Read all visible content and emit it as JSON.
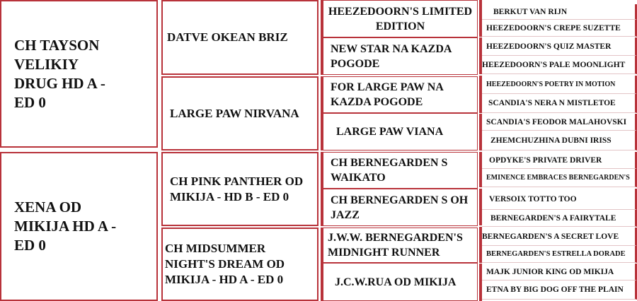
{
  "pedigree": {
    "parents": [
      "CH TAYSON VELIKIY DRUG HD A - ED 0",
      "XENA OD MIKIJA HD A - ED 0"
    ],
    "grandparents": [
      "DATVE OKEAN BRIZ",
      "LARGE PAW NIRVANA",
      "CH PINK PANTHER OD MIKIJA - HD B - ED 0",
      "CH MIDSUMMER NIGHT'S DREAM OD MIKIJA - HD A - ED 0"
    ],
    "great_grandparents": [
      "HEEZEDOORN'S LIMITED EDITION",
      "NEW STAR NA KAZDA POGODE",
      "FOR LARGE PAW NA KAZDA POGODE",
      "LARGE PAW VIANA",
      "CH BERNEGARDEN S WAIKATO",
      "CH BERNEGARDEN S OH JAZZ",
      "J.W.W. BERNEGARDEN'S MIDNIGHT RUNNER",
      "J.C.W.RUA OD MIKIJA"
    ],
    "great_great_grandparents": [
      "BERKUT VAN RIJN",
      "HEEZEDOORN'S CREPE SUZETTE",
      "HEEZEDOORN'S QUIZ MASTER",
      "HEEZEDOORN'S PALE MOONLIGHT",
      "HEEZEDOORN'S POETRY IN MOTION",
      "SCANDIA'S NERA N MISTLETOE",
      "SCANDIA'S FEODOR MALAHOVSKI",
      "ZHEMCHUZHINA DUBNI IRISS",
      "OPDYKE'S PRIVATE DRIVER",
      "EMINENCE EMBRACES BERNEGARDEN'S",
      "VERSOIX TOTTO TOO",
      "BERNEGARDEN'S A FAIRYTALE",
      "BERNEGARDEN'S A SECRET LOVE",
      "BERNEGARDEN'S ESTRELLA DORADE",
      "MAJK JUNIOR KING OD MIKIJA",
      "ETNA BY BIG DOG OFF THE PLAIN"
    ]
  },
  "colors": {
    "border": "#b8323a"
  }
}
